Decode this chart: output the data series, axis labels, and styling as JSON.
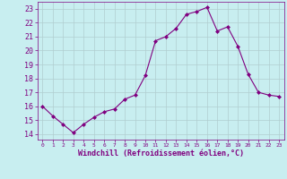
{
  "x": [
    0,
    1,
    2,
    3,
    4,
    5,
    6,
    7,
    8,
    9,
    10,
    11,
    12,
    13,
    14,
    15,
    16,
    17,
    18,
    19,
    20,
    21,
    22,
    23
  ],
  "y": [
    16.0,
    15.3,
    14.7,
    14.1,
    14.7,
    15.2,
    15.6,
    15.8,
    16.5,
    16.8,
    18.2,
    20.7,
    21.0,
    21.6,
    22.6,
    22.8,
    23.1,
    21.4,
    21.7,
    20.3,
    18.3,
    17.0,
    16.8,
    16.7
  ],
  "line_color": "#800080",
  "marker": "D",
  "marker_size": 2,
  "bg_color": "#c8eef0",
  "grid_color": "#b0cdd0",
  "xlabel": "Windchill (Refroidissement éolien,°C)",
  "ytick_labels": [
    "14",
    "15",
    "16",
    "17",
    "18",
    "19",
    "20",
    "21",
    "22",
    "23"
  ],
  "ytick_vals": [
    14,
    15,
    16,
    17,
    18,
    19,
    20,
    21,
    22,
    23
  ],
  "xtick_labels": [
    "0",
    "1",
    "2",
    "3",
    "4",
    "5",
    "6",
    "7",
    "8",
    "9",
    "10",
    "11",
    "12",
    "13",
    "14",
    "15",
    "16",
    "17",
    "18",
    "19",
    "20",
    "21",
    "22",
    "23"
  ],
  "ylim": [
    13.6,
    23.5
  ],
  "xlim": [
    -0.5,
    23.5
  ],
  "tick_color": "#800080",
  "label_color": "#800080",
  "spine_color": "#800080",
  "font_family": "monospace"
}
